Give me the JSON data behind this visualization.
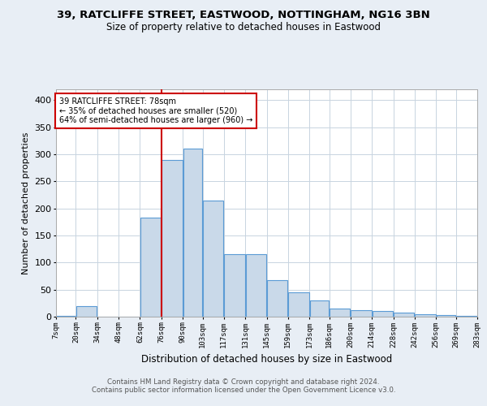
{
  "title1": "39, RATCLIFFE STREET, EASTWOOD, NOTTINGHAM, NG16 3BN",
  "title2": "Size of property relative to detached houses in Eastwood",
  "xlabel": "Distribution of detached houses by size in Eastwood",
  "ylabel": "Number of detached properties",
  "footer1": "Contains HM Land Registry data © Crown copyright and database right 2024.",
  "footer2": "Contains public sector information licensed under the Open Government Licence v3.0.",
  "annotation_line1": "39 RATCLIFFE STREET: 78sqm",
  "annotation_line2": "← 35% of detached houses are smaller (520)",
  "annotation_line3": "64% of semi-detached houses are larger (960) →",
  "bar_left_edges": [
    7,
    20,
    34,
    48,
    62,
    76,
    90,
    103,
    117,
    131,
    145,
    159,
    173,
    186,
    200,
    214,
    228,
    242,
    256,
    269
  ],
  "bar_widths": [
    13,
    14,
    14,
    14,
    14,
    14,
    13,
    14,
    14,
    14,
    14,
    14,
    13,
    14,
    14,
    14,
    14,
    14,
    13,
    14
  ],
  "bar_heights": [
    2,
    20,
    0,
    0,
    183,
    290,
    310,
    215,
    115,
    115,
    68,
    45,
    30,
    15,
    12,
    10,
    7,
    5,
    3,
    2
  ],
  "bar_color": "#c9d9e9",
  "bar_edge_color": "#5b9bd5",
  "vline_x": 76,
  "vline_color": "#cc0000",
  "box_color": "#cc0000",
  "ylim": [
    0,
    420
  ],
  "xlim": [
    7,
    283
  ],
  "tick_labels": [
    "7sqm",
    "20sqm",
    "34sqm",
    "48sqm",
    "62sqm",
    "76sqm",
    "90sqm",
    "103sqm",
    "117sqm",
    "131sqm",
    "145sqm",
    "159sqm",
    "173sqm",
    "186sqm",
    "200sqm",
    "214sqm",
    "228sqm",
    "242sqm",
    "256sqm",
    "269sqm",
    "283sqm"
  ],
  "tick_positions": [
    7,
    20,
    34,
    48,
    62,
    76,
    90,
    103,
    117,
    131,
    145,
    159,
    173,
    186,
    200,
    214,
    228,
    242,
    256,
    269,
    283
  ],
  "yticks": [
    0,
    50,
    100,
    150,
    200,
    250,
    300,
    350,
    400
  ],
  "bg_color": "#e8eef5",
  "plot_bg_color": "#ffffff",
  "grid_color": "#c8d4e0"
}
